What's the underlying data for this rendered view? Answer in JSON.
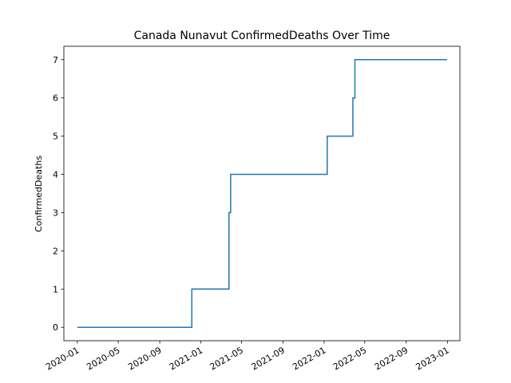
{
  "chart_data": {
    "type": "line",
    "title": "Canada Nunavut ConfirmedDeaths Over Time",
    "xlabel": "",
    "ylabel": "ConfirmedDeaths",
    "line_style": "step",
    "color": "#1f77b4",
    "grid": false,
    "legend": "none",
    "xlim": [
      "2019-11-22",
      "2023-02-07"
    ],
    "ylim": [
      -0.35,
      7.35
    ],
    "x_ticks": [
      {
        "date": "2020-01-01",
        "label": "2020-01"
      },
      {
        "date": "2020-05-01",
        "label": "2020-05"
      },
      {
        "date": "2020-09-01",
        "label": "2020-09"
      },
      {
        "date": "2021-01-01",
        "label": "2021-01"
      },
      {
        "date": "2021-05-01",
        "label": "2021-05"
      },
      {
        "date": "2021-09-01",
        "label": "2021-09"
      },
      {
        "date": "2022-01-01",
        "label": "2022-01"
      },
      {
        "date": "2022-05-01",
        "label": "2022-05"
      },
      {
        "date": "2022-09-01",
        "label": "2022-09"
      },
      {
        "date": "2023-01-01",
        "label": "2023-01"
      }
    ],
    "y_ticks": [
      0,
      1,
      2,
      3,
      4,
      5,
      6,
      7
    ],
    "series": [
      {
        "x": [
          "2020-01-01",
          "2020-12-04",
          "2020-12-05",
          "2021-03-24",
          "2021-03-25",
          "2021-03-29",
          "2021-03-30",
          "2022-01-09",
          "2022-01-10",
          "2022-03-26",
          "2022-03-27",
          "2022-04-01",
          "2022-04-02",
          "2022-12-31"
        ],
        "values": [
          0,
          0,
          1,
          1,
          3,
          3,
          4,
          4,
          5,
          5,
          6,
          6,
          7,
          7
        ]
      }
    ]
  }
}
